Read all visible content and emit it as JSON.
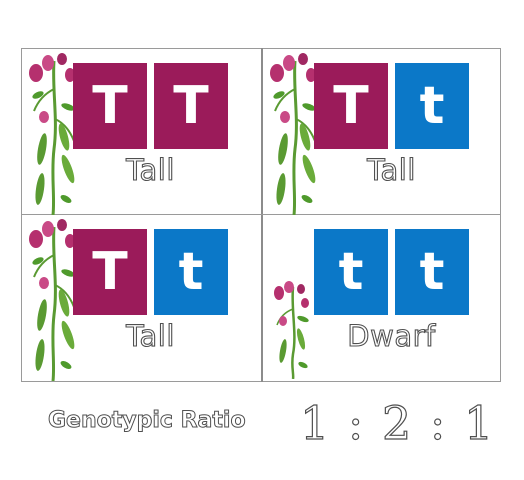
{
  "colors": {
    "dominant_tile": "#9b1b5a",
    "recessive_tile": "#0b78c8",
    "grid_line": "#9a9a9a",
    "leaf_green": "#4f9a2c",
    "flower_pink": "#b5306e"
  },
  "cells": [
    {
      "allele1": "T",
      "allele2": "T",
      "phenotype": "Tall"
    },
    {
      "allele1": "T",
      "allele2": "t",
      "phenotype": "Tall"
    },
    {
      "allele1": "T",
      "allele2": "t",
      "phenotype": "Tall"
    },
    {
      "allele1": "t",
      "allele2": "t",
      "phenotype": "Dwarf"
    }
  ],
  "footer": {
    "label": "Genotypic Ratio",
    "ratio": "1 : 2 : 1"
  }
}
